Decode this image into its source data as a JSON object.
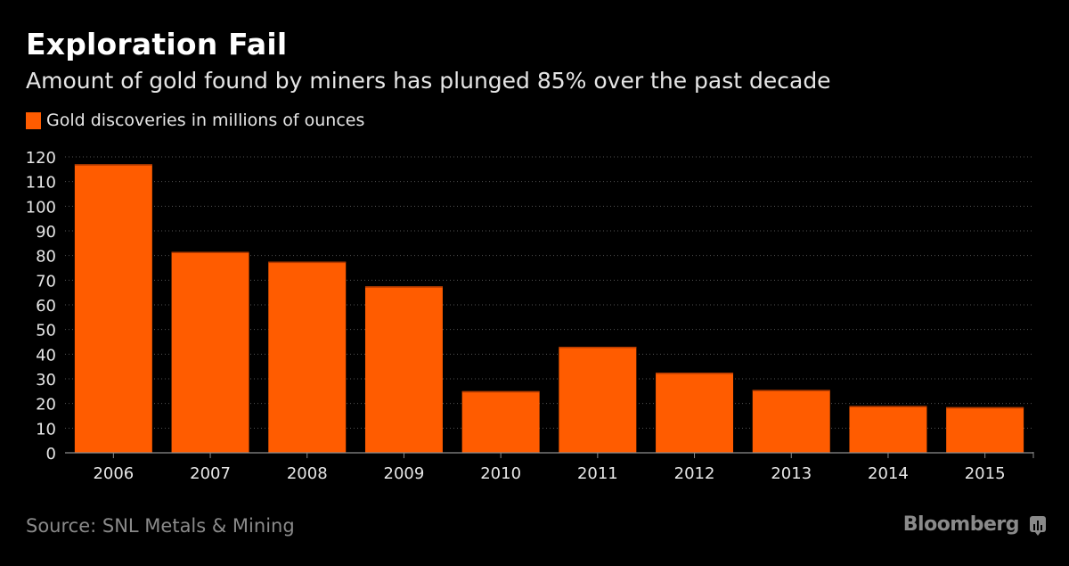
{
  "header": {
    "title": "Exploration Fail",
    "subtitle": "Amount of gold found by miners has plunged 85% over the past decade"
  },
  "footer": {
    "source": "Source: SNL Metals & Mining",
    "brand": "Bloomberg",
    "brand_icon": "bloomberg-chart-icon"
  },
  "colors": {
    "background": "#000000",
    "bar": "#ff5c00",
    "bar_top": "#b33a00",
    "grid": "#555555",
    "axis": "#8c8c8c",
    "text": "#e6e6e6"
  },
  "chart_data": {
    "type": "bar",
    "title": "Exploration Fail",
    "subtitle": "Amount of gold found by miners has plunged 85% over the past decade",
    "legend": [
      {
        "name": "Gold discoveries in millions of ounces",
        "color": "#ff5c00"
      }
    ],
    "legend_position": "top-left",
    "categories": [
      "2006",
      "2007",
      "2008",
      "2009",
      "2010",
      "2011",
      "2012",
      "2013",
      "2014",
      "2015"
    ],
    "series": [
      {
        "name": "Gold discoveries in millions of ounces",
        "values": [
          117,
          81.5,
          77.5,
          67.5,
          25,
          43,
          32.5,
          25.5,
          19,
          18.5
        ]
      }
    ],
    "xlabel": "",
    "ylabel": "",
    "ylim": [
      0,
      120
    ],
    "yticks": [
      0,
      10,
      20,
      30,
      40,
      50,
      60,
      70,
      80,
      90,
      100,
      110,
      120
    ],
    "grid": true,
    "source": "Source: SNL Metals & Mining"
  }
}
